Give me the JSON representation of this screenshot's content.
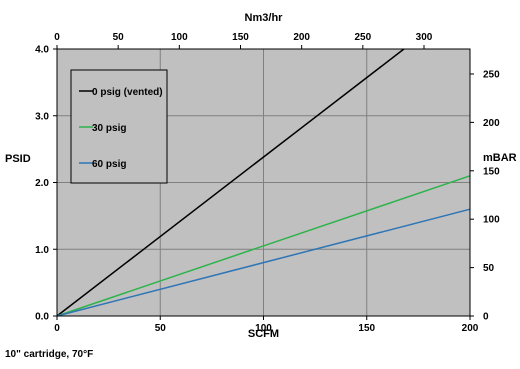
{
  "chart_data": {
    "type": "line",
    "title": "",
    "note": "10\" cartridge, 70°F",
    "x_axis": {
      "label": "SCFM",
      "range": [
        0,
        200
      ],
      "ticks": [
        "0",
        "50",
        "100",
        "150",
        "200"
      ],
      "tick_values": [
        0,
        50,
        100,
        150,
        200
      ]
    },
    "x2_axis": {
      "label": "Nm3/hr",
      "range": [
        0,
        337.6
      ],
      "ticks": [
        "0",
        "50",
        "100",
        "150",
        "200",
        "250",
        "300"
      ],
      "tick_values": [
        0,
        50,
        100,
        150,
        200,
        250,
        300
      ]
    },
    "y_axis": {
      "label": "PSID",
      "range": [
        0,
        4
      ],
      "ticks": [
        "0.0",
        "1.0",
        "2.0",
        "3.0",
        "4.0"
      ],
      "tick_values": [
        0,
        1,
        2,
        3,
        4
      ]
    },
    "y2_axis": {
      "label": "mBAR",
      "range": [
        0,
        275.8
      ],
      "ticks": [
        "0",
        "50",
        "100",
        "150",
        "200",
        "250"
      ],
      "tick_values": [
        0,
        50,
        100,
        150,
        200,
        250
      ]
    },
    "grid": true,
    "legend_position": "top-left",
    "series": [
      {
        "name": "0 psig (vented)",
        "color": "#000000",
        "x": [
          0,
          168
        ],
        "y": [
          0,
          4.0
        ]
      },
      {
        "name": "30 psig",
        "color": "#2db34a",
        "x": [
          0,
          200
        ],
        "y": [
          0,
          2.1
        ]
      },
      {
        "name": "60 psig",
        "color": "#2e75b6",
        "x": [
          0,
          200
        ],
        "y": [
          0,
          1.6
        ]
      }
    ],
    "colors": {
      "plot_background": "#c0c0c0",
      "gridline": "#808080"
    }
  }
}
